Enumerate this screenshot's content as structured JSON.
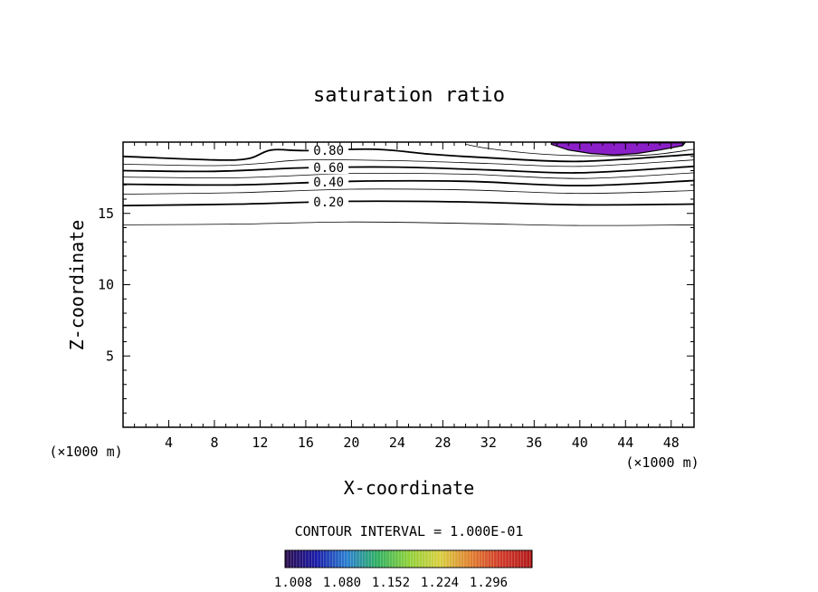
{
  "chart_data": {
    "type": "contour",
    "title": "saturation ratio",
    "xlabel": "X-coordinate",
    "ylabel": "Z-coordinate",
    "x_unit_left": "(×1000 m)",
    "x_unit_right": "(×1000 m)",
    "xlim": [
      0,
      50
    ],
    "ylim": [
      0,
      20
    ],
    "x_ticks": [
      4,
      8,
      12,
      16,
      20,
      24,
      28,
      32,
      36,
      40,
      44,
      48
    ],
    "y_ticks": [
      5,
      10,
      15
    ],
    "contour_interval_text": "CONTOUR INTERVAL = 1.000E-01",
    "contours": [
      {
        "level": 0.1,
        "label": "",
        "bold": false,
        "points": [
          [
            0,
            14.2
          ],
          [
            10,
            14.25
          ],
          [
            20,
            14.4
          ],
          [
            30,
            14.3
          ],
          [
            40,
            14.15
          ],
          [
            50,
            14.2
          ]
        ]
      },
      {
        "level": 0.2,
        "label": "0.20",
        "bold": true,
        "points": [
          [
            0,
            15.55
          ],
          [
            10,
            15.65
          ],
          [
            20,
            15.85
          ],
          [
            30,
            15.8
          ],
          [
            40,
            15.6
          ],
          [
            50,
            15.65
          ]
        ]
      },
      {
        "level": 0.3,
        "label": "",
        "bold": false,
        "points": [
          [
            0,
            16.35
          ],
          [
            10,
            16.45
          ],
          [
            20,
            16.7
          ],
          [
            30,
            16.65
          ],
          [
            40,
            16.4
          ],
          [
            50,
            16.6
          ]
        ]
      },
      {
        "level": 0.4,
        "label": "0.40",
        "bold": true,
        "points": [
          [
            0,
            17.05
          ],
          [
            10,
            17.0
          ],
          [
            20,
            17.25
          ],
          [
            30,
            17.25
          ],
          [
            40,
            16.95
          ],
          [
            50,
            17.3
          ]
        ]
      },
      {
        "level": 0.5,
        "label": "",
        "bold": false,
        "points": [
          [
            0,
            17.55
          ],
          [
            10,
            17.5
          ],
          [
            20,
            17.8
          ],
          [
            30,
            17.75
          ],
          [
            40,
            17.45
          ],
          [
            50,
            17.85
          ]
        ]
      },
      {
        "level": 0.6,
        "label": "0.60",
        "bold": true,
        "points": [
          [
            0,
            18.0
          ],
          [
            8,
            17.95
          ],
          [
            16,
            18.2
          ],
          [
            24,
            18.25
          ],
          [
            32,
            18.05
          ],
          [
            40,
            17.85
          ],
          [
            50,
            18.3
          ]
        ]
      },
      {
        "level": 0.7,
        "label": "",
        "bold": false,
        "points": [
          [
            0,
            18.45
          ],
          [
            8,
            18.35
          ],
          [
            12,
            18.5
          ],
          [
            16,
            18.75
          ],
          [
            24,
            18.7
          ],
          [
            32,
            18.5
          ],
          [
            40,
            18.3
          ],
          [
            50,
            18.75
          ]
        ]
      },
      {
        "level": 0.8,
        "label": "0.80",
        "bold": true,
        "points": [
          [
            0,
            19.0
          ],
          [
            8,
            18.75
          ],
          [
            11,
            18.85
          ],
          [
            13,
            19.45
          ],
          [
            16,
            19.4
          ],
          [
            22,
            19.5
          ],
          [
            27,
            19.15
          ],
          [
            32,
            18.9
          ],
          [
            40,
            18.65
          ],
          [
            50,
            19.15
          ]
        ]
      },
      {
        "level": 0.9,
        "label": "",
        "bold": false,
        "points": [
          [
            30,
            19.85
          ],
          [
            32,
            19.55
          ],
          [
            36,
            19.2
          ],
          [
            40,
            19.05
          ],
          [
            46,
            19.1
          ],
          [
            50,
            19.5
          ]
        ]
      }
    ],
    "supersaturation_region": {
      "color": "#8a1fc8",
      "min_value": 1.008,
      "outline": [
        [
          37.5,
          19.85
        ],
        [
          39,
          19.45
        ],
        [
          41,
          19.2
        ],
        [
          43,
          19.1
        ],
        [
          45,
          19.2
        ],
        [
          47,
          19.45
        ],
        [
          49,
          19.75
        ],
        [
          49.2,
          19.95
        ],
        [
          37.5,
          19.95
        ]
      ]
    },
    "colorbar": {
      "tick_labels": [
        "1.008",
        "1.080",
        "1.152",
        "1.224",
        "1.296"
      ],
      "colors": [
        "#2a0d4a",
        "#1a1aa8",
        "#2a7fd0",
        "#2fb060",
        "#8fd03a",
        "#d8d040",
        "#e08030",
        "#d03828",
        "#b01818"
      ]
    }
  }
}
